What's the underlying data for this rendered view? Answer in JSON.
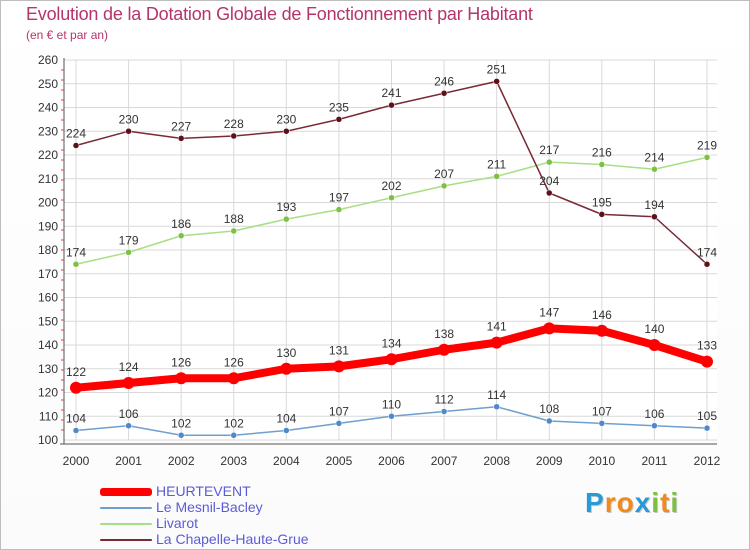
{
  "title": "Evolution de la Dotation Globale de Fonctionnement par Habitant",
  "subtitle": "(en € et par an)",
  "brand": {
    "letters": [
      "P",
      "r",
      "o",
      "x",
      "i",
      "t",
      "i"
    ],
    "colors": [
      "#2a9ad6",
      "#f08a1a",
      "#f08a1a",
      "#2a9ad6",
      "#7cc142",
      "#f08a1a",
      "#7cc142"
    ]
  },
  "chart_data": {
    "type": "line",
    "title": "Evolution de la Dotation Globale de Fonctionnement par Habitant",
    "subtitle": "(en € et par an)",
    "xlabel": "",
    "ylabel": "",
    "x": [
      "2000",
      "2001",
      "2002",
      "2003",
      "2004",
      "2005",
      "2006",
      "2007",
      "2008",
      "2009",
      "2010",
      "2011",
      "2012"
    ],
    "ylim": [
      100,
      260
    ],
    "yticks": [
      100,
      110,
      120,
      130,
      140,
      150,
      160,
      170,
      180,
      190,
      200,
      210,
      220,
      230,
      240,
      250,
      260
    ],
    "grid": true,
    "legend_position": "bottom-left",
    "series": [
      {
        "name": "HEURTEVENT",
        "color": "#ff0000",
        "marker": "#ff0000",
        "values": [
          122,
          124,
          126,
          126,
          130,
          131,
          134,
          138,
          141,
          147,
          146,
          140,
          133
        ]
      },
      {
        "name": "Le Mesnil-Bacley",
        "color": "#6f9fd0",
        "marker": "#4f89c8",
        "values": [
          104,
          106,
          102,
          102,
          104,
          107,
          110,
          112,
          114,
          108,
          107,
          106,
          105
        ]
      },
      {
        "name": "Livarot",
        "color": "#a8de86",
        "marker": "#7cc142",
        "values": [
          174,
          179,
          186,
          188,
          193,
          197,
          202,
          207,
          211,
          217,
          216,
          214,
          219
        ]
      },
      {
        "name": "La Chapelle-Haute-Grue",
        "color": "#7a2a36",
        "marker": "#5c1018",
        "values": [
          224,
          230,
          227,
          228,
          230,
          235,
          241,
          246,
          251,
          204,
          195,
          194,
          174
        ]
      }
    ]
  }
}
